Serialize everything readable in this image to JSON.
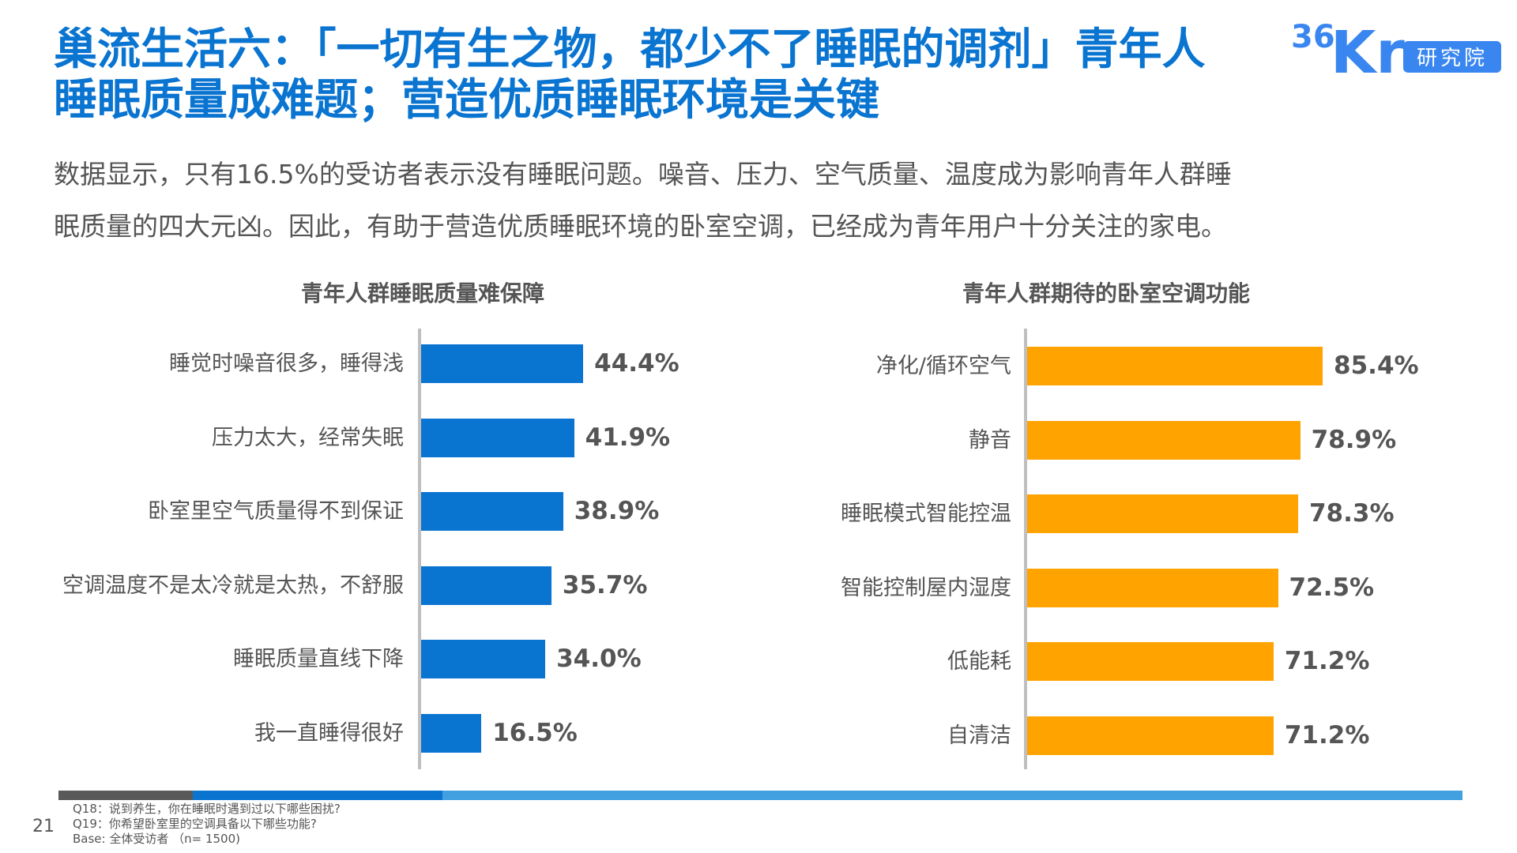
{
  "title_lines": [
    "巢流生活六：「一切有生之物，都少不了睡眠的调剂」青年人",
    "睡眠质量成难题；营造优质睡眠环境是关键"
  ],
  "subtitle_lines": [
    "数据显示，只有16.5%的受访者表示没有睡眠问题。噪音、压力、空气质量、温度成为影响青年人群睡",
    "眠质量的四大元凶。因此，有助于营造优质睡眠环境的卧室空调，已经成为青年用户十分关注的家电。"
  ],
  "logo": {
    "text": "36Kr",
    "badge": "研究院",
    "color": "#3a86f0"
  },
  "chart_data": [
    {
      "type": "bar",
      "orientation": "horizontal",
      "title": "青年人群睡眠质量难保障",
      "color": "#0a74d1",
      "categories": [
        "睡觉时噪音很多，睡得浅",
        "压力太大，经常失眠",
        "卧室里空气质量得不到保证",
        "空调温度不是太冷就是太热，不舒服",
        "睡眠质量直线下降",
        "我一直睡得很好"
      ],
      "values": [
        44.4,
        41.9,
        38.9,
        35.7,
        34.0,
        16.5
      ],
      "labels": [
        "44.4%",
        "41.9%",
        "38.9%",
        "35.7%",
        "34.0%",
        "16.5%"
      ]
    },
    {
      "type": "bar",
      "orientation": "horizontal",
      "title": "青年人群期待的卧室空调功能",
      "color": "#ffa300",
      "categories": [
        "净化/循环空气",
        "静音",
        "睡眠模式智能控温",
        "智能控制屋内湿度",
        "低能耗",
        "自清洁"
      ],
      "values": [
        85.4,
        78.9,
        78.3,
        72.5,
        71.2,
        71.2
      ],
      "labels": [
        "85.4%",
        "78.9%",
        "78.3%",
        "72.5%",
        "71.2%",
        "71.2%"
      ]
    }
  ],
  "footer": {
    "notes": [
      "Q18：说到养生，你在睡眠时遇到过以下哪些困扰?",
      "Q19：你希望卧室里的空调具备以下哪些功能?",
      "Base: 全体受访者 （n= 1500)"
    ],
    "page_number": "21",
    "bar_colors": [
      "#595959",
      "#0a74d1",
      "#41a0e0"
    ]
  }
}
